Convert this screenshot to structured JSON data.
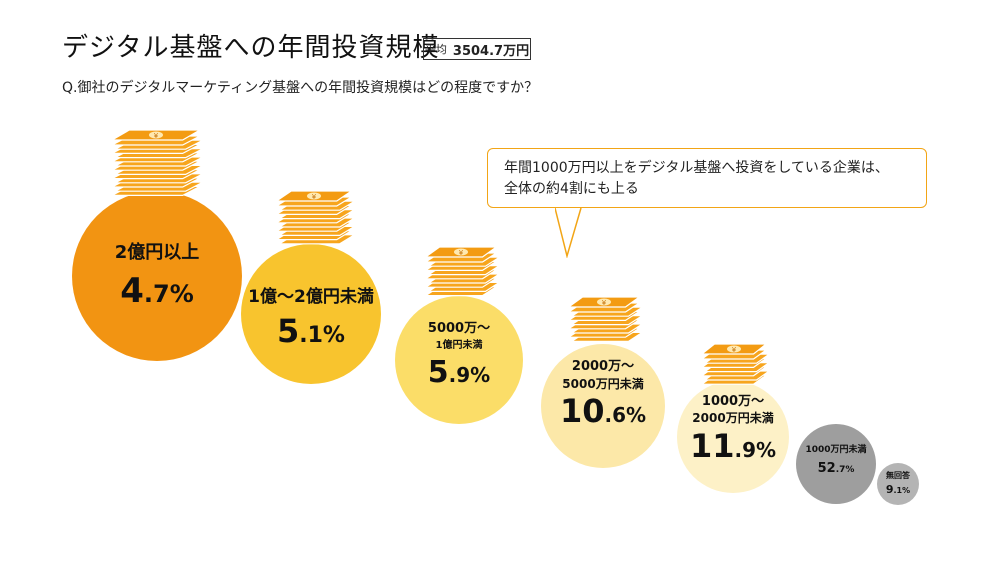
{
  "header": {
    "title": "デジタル基盤への年間投資規模",
    "avg_label": "平均",
    "avg_value": "3504.7万円",
    "question": "Q.御社のデジタルマーケティング基盤への年間投資規模はどの程度ですか？"
  },
  "callout": {
    "line1": "年間1000万円以上をデジタル基盤へ投資をしている企業は、",
    "line2": "全体の約4割にも上る"
  },
  "chart_data": {
    "type": "bubble",
    "unit": "%",
    "categories": [
      "2億円以上",
      "1億〜2億円未満",
      "5000万〜1億円未満",
      "2000万〜5000万円未満",
      "1000万〜2000万円未満",
      "1000万円未満",
      "無回答"
    ],
    "values": [
      4.7,
      5.1,
      5.9,
      10.6,
      11.9,
      52.7,
      9.1
    ],
    "colors": [
      "#f29412",
      "#f8c42e",
      "#fbdd68",
      "#fce8a8",
      "#fdf1c7",
      "#9e9e9e",
      "#b4b4b4"
    ],
    "money_stack_icon": "money-stack-icon"
  }
}
